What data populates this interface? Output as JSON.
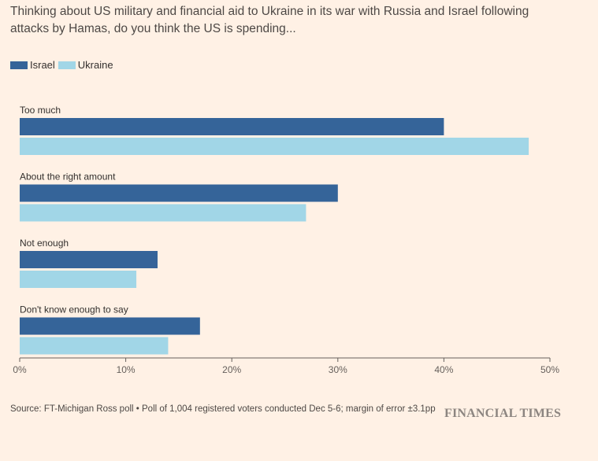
{
  "subtitle": "Thinking about US military and financial aid to Ukraine in its war with Russia and Israel following attacks by Hamas, do you think the US is spending...",
  "legend": [
    {
      "name": "Israel",
      "color": "#356499"
    },
    {
      "name": "Ukraine",
      "color": "#a1d6e7"
    }
  ],
  "chart_data": {
    "type": "bar",
    "orientation": "horizontal",
    "categories": [
      "Too much",
      "About the right amount",
      "Not enough",
      "Don't know enough to say"
    ],
    "series": [
      {
        "name": "Israel",
        "color": "#356499",
        "values": [
          40,
          30,
          13,
          17
        ]
      },
      {
        "name": "Ukraine",
        "color": "#a1d6e7",
        "values": [
          48,
          27,
          11,
          14
        ]
      }
    ],
    "xlim": [
      0,
      50
    ],
    "xticks": [
      "0%",
      "10%",
      "20%",
      "30%",
      "40%",
      "50%"
    ],
    "grid": false,
    "legend_position": "top-left"
  },
  "source": "Source: FT-Michigan Ross poll • Poll of 1,004 registered voters conducted Dec 5-6; margin of error ±3.1pp",
  "brand": "FINANCIAL TIMES"
}
